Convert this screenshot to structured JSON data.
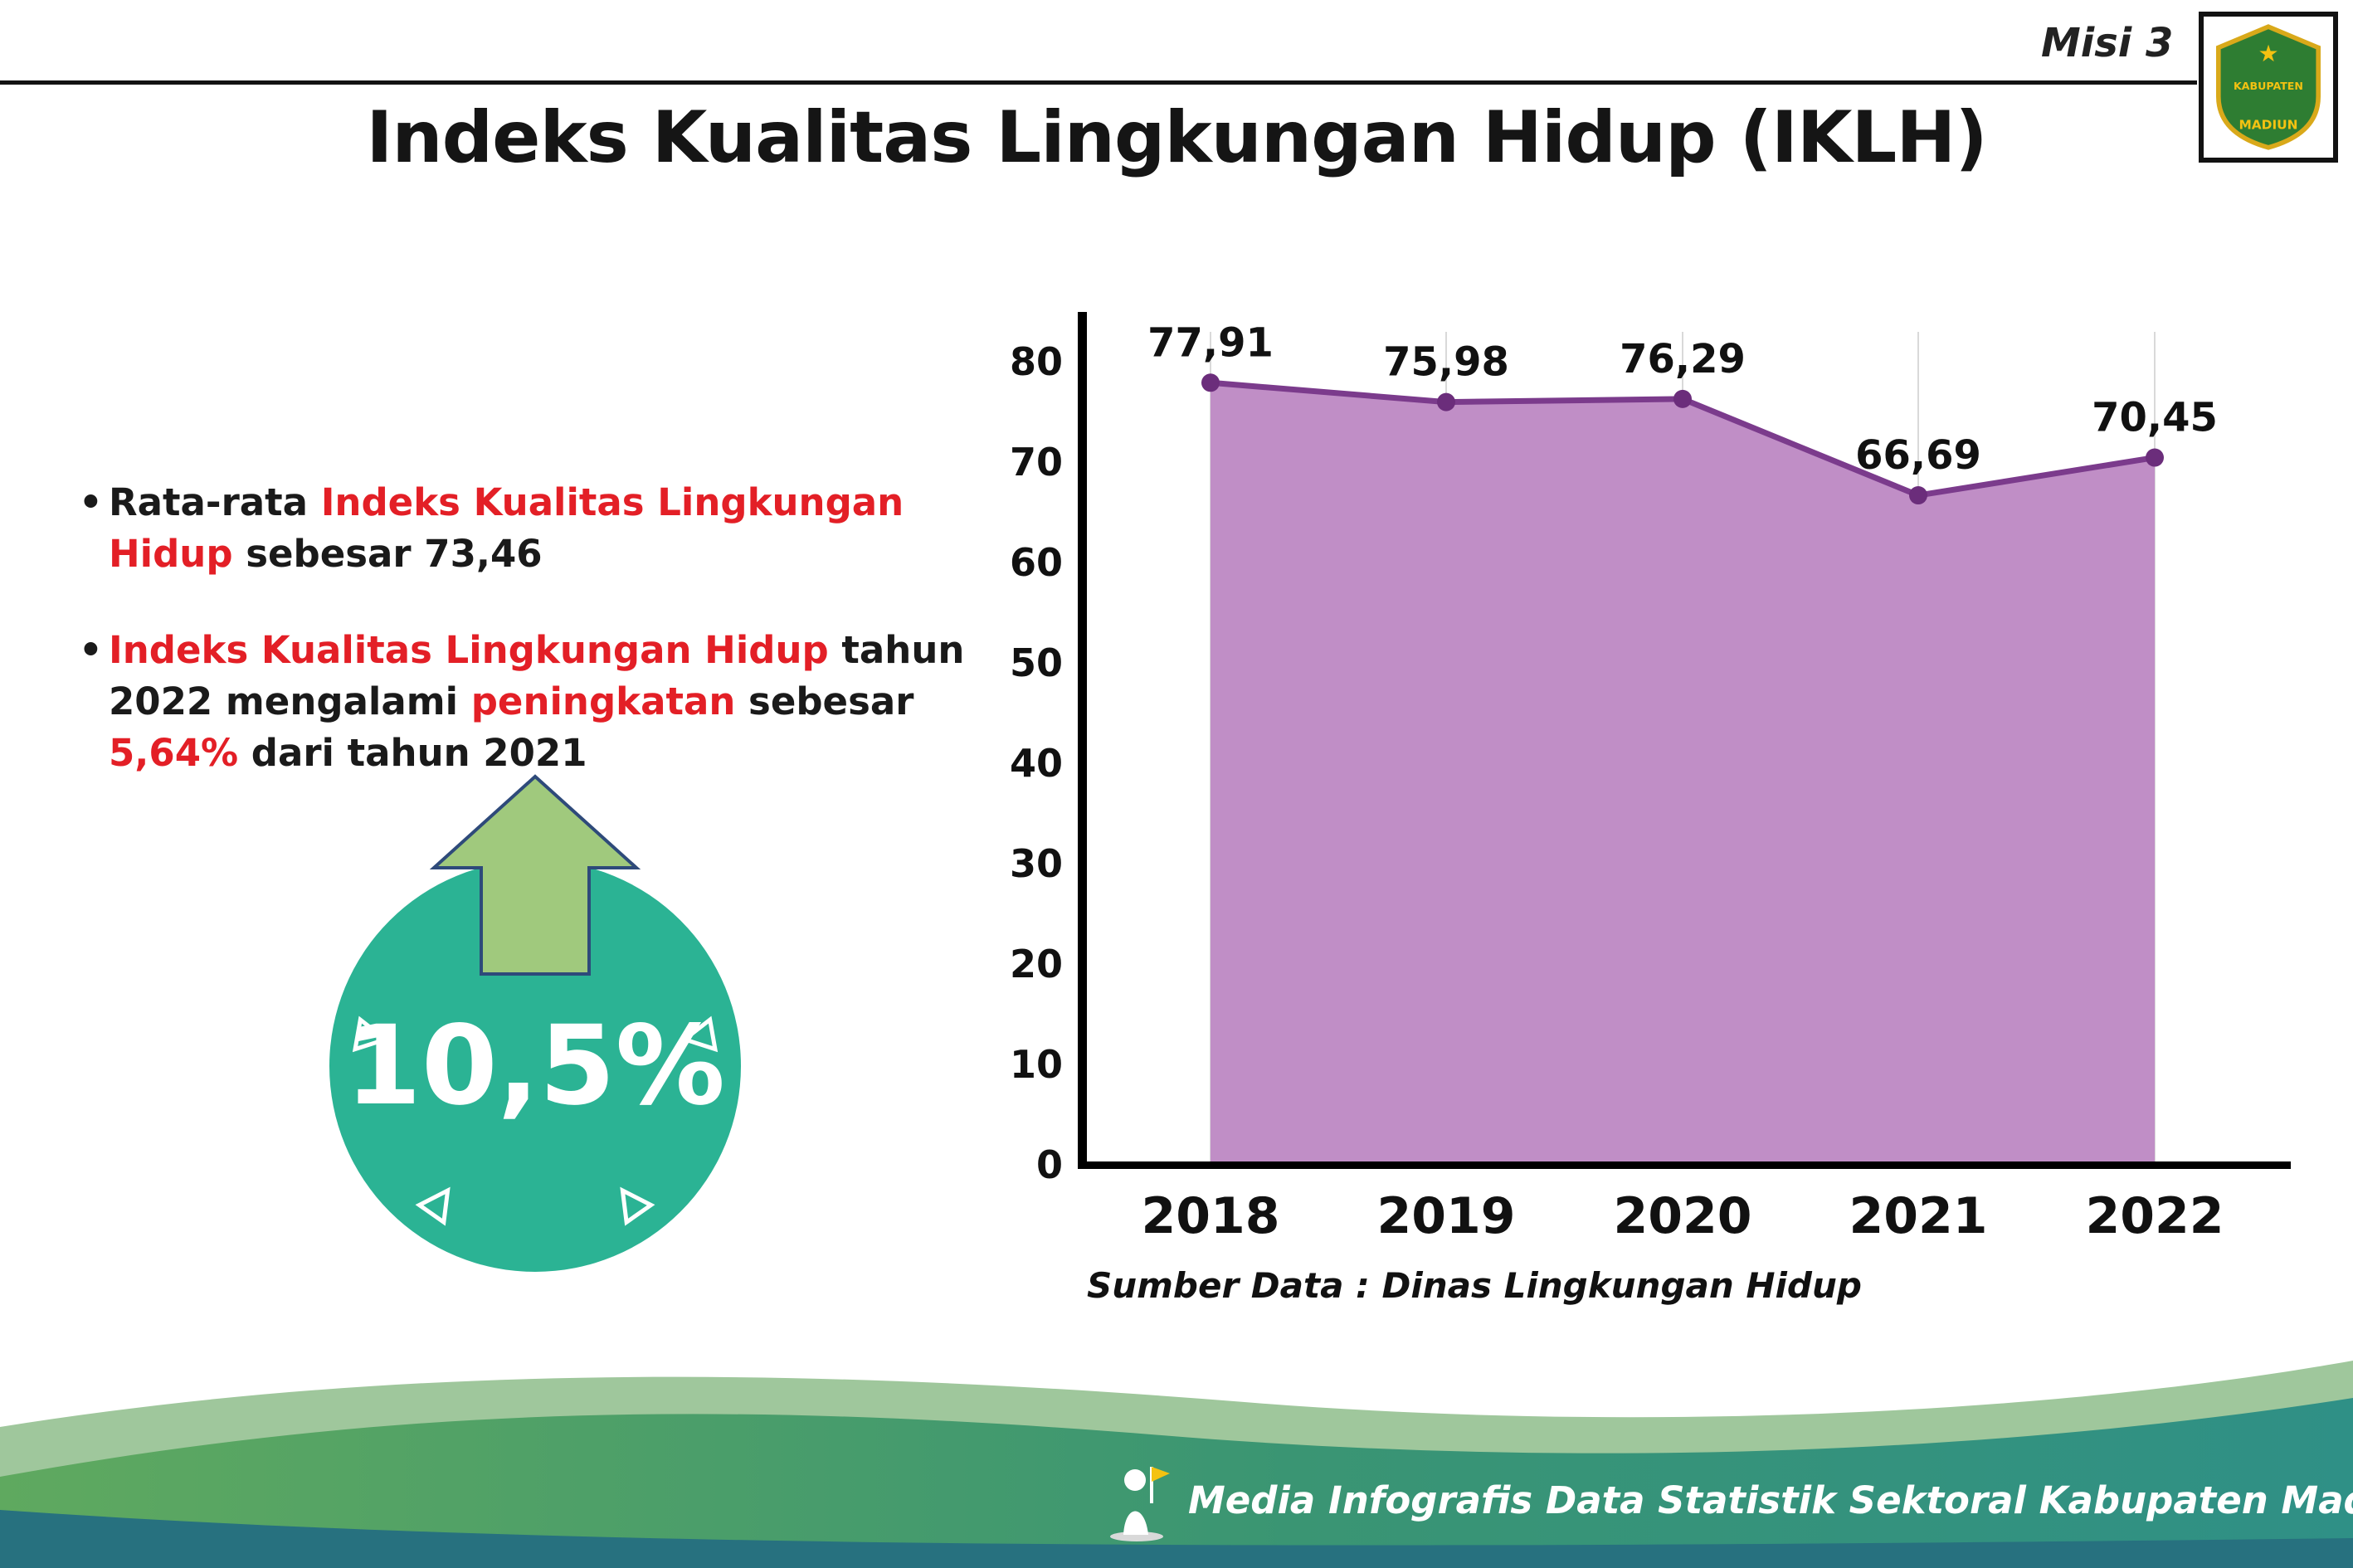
{
  "header": {
    "misi_label": "Misi 3",
    "title": "Indeks Kualitas Lingkungan Hidup (IKLH)",
    "logo": {
      "line1": "KABUPATEN",
      "line2": "MADIUN",
      "star": "★"
    }
  },
  "bullets": [
    {
      "segments": [
        {
          "text": "Rata-rata ",
          "color": "default"
        },
        {
          "text": "Indeks Kualitas Lingkungan Hidup",
          "color": "red"
        },
        {
          "text": " sebesar 73,46",
          "color": "default"
        }
      ]
    },
    {
      "segments": [
        {
          "text": "Indeks Kualitas Lingkungan Hidup",
          "color": "red"
        },
        {
          "text": " tahun 2022 mengalami ",
          "color": "default"
        },
        {
          "text": "peningkatan",
          "color": "red"
        },
        {
          "text": " sebesar ",
          "color": "default"
        },
        {
          "text": "5,64%",
          "color": "red"
        },
        {
          "text": " dari tahun 2021",
          "color": "default"
        }
      ]
    }
  ],
  "highlight_badge": {
    "value": "10,5%"
  },
  "chart_data": {
    "type": "area",
    "categories": [
      "2018",
      "2019",
      "2020",
      "2021",
      "2022"
    ],
    "values": [
      77.91,
      75.98,
      76.29,
      66.69,
      70.45
    ],
    "value_labels": [
      "77,91",
      "75,98",
      "76,29",
      "66,69",
      "70,45"
    ],
    "title": "",
    "xlabel": "",
    "ylabel": "",
    "ylim": [
      0,
      80
    ],
    "yticks": [
      0,
      10,
      20,
      30,
      40,
      50,
      60,
      70,
      80
    ],
    "grid": "vertical-only",
    "legend": "none",
    "source": "Sumber Data : Dinas Lingkungan Hidup",
    "colors": {
      "area": "#c08ec6",
      "line": "#7b3b8c",
      "point": "#6b2d7b",
      "axis": "#000000",
      "grid": "#d9d9d9"
    }
  },
  "footer": {
    "text": "Media Infografis Data Statistik Sektoral Kabupaten Madiun |"
  },
  "colors": {
    "accent_red": "#e31f26",
    "badge_teal": "#2bb394",
    "arrow_green": "#a0c97d",
    "arrow_outline": "#2e4a7a",
    "wave_light": "#9fc79c",
    "wave_green": "#5fa95f",
    "wave_mid": "#3a9573",
    "wave_teal": "#2f9086",
    "wave_bottom": "#27717f",
    "text_black": "#111111"
  }
}
